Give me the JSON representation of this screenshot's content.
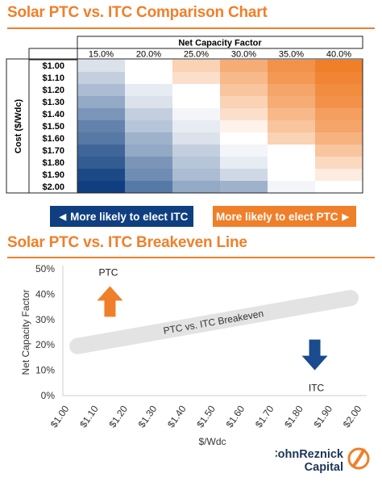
{
  "title_top": "Solar PTC vs. ITC Comparison Chart",
  "title_bottom": "Solar PTC vs. ITC Breakeven Line",
  "legend": {
    "itc_label": "More likely to elect ITC",
    "ptc_label": "More likely to elect PTC",
    "itc_color": "#0f3f80",
    "ptc_color": "#f07f2a"
  },
  "logo": {
    "line1": "CohnReznick",
    "line2": "Capital"
  },
  "colors": {
    "accent_orange": "#f07f2a",
    "blue": "#0f3f80",
    "arrow_blue": "#1a4b8c",
    "breakeven_band": "#e3e3e3"
  },
  "chart_data": [
    {
      "type": "heatmap",
      "title": "Solar PTC vs. ITC Comparison Chart",
      "xlabel": "Net Capacity Factor",
      "ylabel": "Cost ($/Wdc)",
      "x": [
        "15.0%",
        "20.0%",
        "25.0%",
        "30.0%",
        "35.0%",
        "40.0%"
      ],
      "y": [
        "$1.00",
        "$1.10",
        "$1.20",
        "$1.30",
        "$1.40",
        "$1.50",
        "$1.60",
        "$1.70",
        "$1.80",
        "$1.90",
        "$2.00"
      ],
      "values": [
        [
          -0.15,
          0.0,
          0.35,
          0.65,
          0.85,
          1.0
        ],
        [
          -0.25,
          0.0,
          0.25,
          0.55,
          0.8,
          0.95
        ],
        [
          -0.35,
          -0.1,
          0.0,
          0.45,
          0.7,
          0.9
        ],
        [
          -0.45,
          -0.15,
          0.0,
          0.35,
          0.65,
          0.85
        ],
        [
          -0.55,
          -0.25,
          -0.05,
          0.25,
          0.55,
          0.75
        ],
        [
          -0.65,
          -0.3,
          -0.1,
          0.1,
          0.45,
          0.7
        ],
        [
          -0.7,
          -0.4,
          -0.15,
          0.0,
          0.35,
          0.6
        ],
        [
          -0.8,
          -0.45,
          -0.25,
          -0.05,
          0.0,
          0.45
        ],
        [
          -0.85,
          -0.55,
          -0.3,
          -0.1,
          0.0,
          0.3
        ],
        [
          -0.95,
          -0.6,
          -0.35,
          -0.2,
          0.0,
          0.15
        ],
        [
          -1.0,
          -0.7,
          -0.45,
          -0.4,
          -0.05,
          0.0
        ]
      ],
      "value_meaning": "positive = more likely to elect PTC (orange), negative = more likely to elect ITC (blue)"
    },
    {
      "type": "line",
      "title": "Solar PTC vs. ITC Breakeven Line",
      "xlabel": "$/Wdc",
      "ylabel": "Net Capacity Factor",
      "categories": [
        "$1.00",
        "$1.10",
        "$1.20",
        "$1.30",
        "$1.40",
        "$1.50",
        "$1.60",
        "$1.70",
        "$1.80",
        "$1.90",
        "$2.00"
      ],
      "yticks": [
        "0%",
        "10%",
        "20%",
        "30%",
        "40%",
        "50%"
      ],
      "ylim": [
        0,
        50
      ],
      "xlim": [
        1.0,
        2.0
      ],
      "series": [
        {
          "name": "PTC vs. ITC Breakeven",
          "x": [
            1.0,
            2.0
          ],
          "y": [
            19.5,
            38.5
          ]
        }
      ],
      "annotations": [
        {
          "text": "PTC",
          "arrow": "up",
          "color": "#f07f2a",
          "x": 1.15,
          "y": 40
        },
        {
          "text": "ITC",
          "arrow": "down",
          "color": "#1a4b8c",
          "x": 1.85,
          "y": 10
        }
      ],
      "grid": false
    }
  ]
}
